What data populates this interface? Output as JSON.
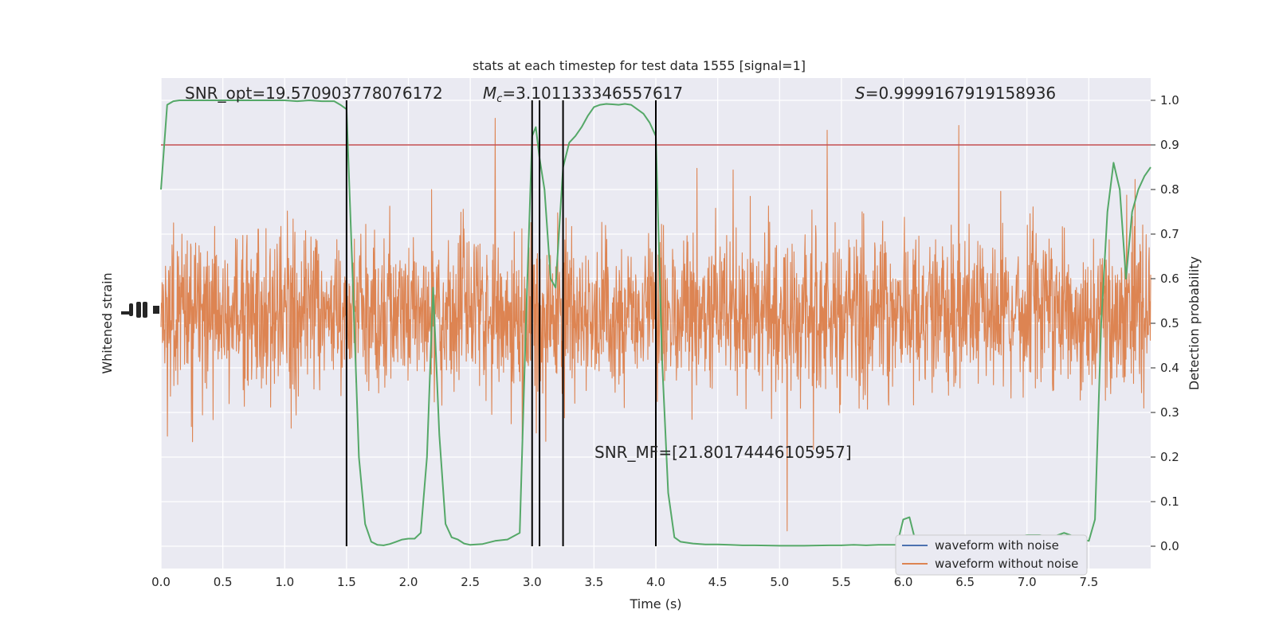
{
  "chart_data": {
    "type": "line",
    "title": "stats at each timestep for test data 1555 [signal=1]",
    "xlabel": "Time (s)",
    "ylabel_left": "Whitened strain",
    "ylabel_right": "Detection probability",
    "xlim": [
      0,
      8
    ],
    "ylim_right": [
      -0.05,
      1.05
    ],
    "x_ticks": [
      "0.0",
      "0.5",
      "1.0",
      "1.5",
      "2.0",
      "2.5",
      "3.0",
      "3.5",
      "4.0",
      "4.5",
      "5.0",
      "5.5",
      "6.0",
      "6.5",
      "7.0",
      "7.5"
    ],
    "y_ticks_right": [
      "0.0",
      "0.1",
      "0.2",
      "0.3",
      "0.4",
      "0.5",
      "0.6",
      "0.7",
      "0.8",
      "0.9",
      "1.0"
    ],
    "grid": true,
    "threshold": 0.9,
    "vlines": [
      1.5,
      3.0,
      3.06,
      3.25,
      4.0
    ],
    "annotations": {
      "snr_opt": "SNR_opt=19.570903778076172",
      "mc_symbol": "M",
      "mc_sub": "c",
      "mc_value": "=3.101133346557617",
      "s_symbol": "S",
      "s_value": "=0.9999167919158936",
      "snr_mf": "SNR_MF=[21.80174446105957]"
    },
    "legend": {
      "position": "lower-right",
      "entries": [
        {
          "name": "waveform with noise",
          "color": "#4c72b0"
        },
        {
          "name": "waveform without noise",
          "color": "#dd8452"
        }
      ]
    },
    "series": [
      {
        "name": "detection probability",
        "color": "#55a868",
        "x": [
          0.0,
          0.05,
          0.1,
          0.15,
          0.2,
          0.3,
          0.4,
          0.5,
          0.6,
          0.7,
          0.8,
          0.9,
          1.0,
          1.1,
          1.2,
          1.3,
          1.4,
          1.45,
          1.5,
          1.55,
          1.6,
          1.65,
          1.7,
          1.75,
          1.8,
          1.85,
          1.9,
          1.95,
          2.0,
          2.05,
          2.1,
          2.15,
          2.2,
          2.25,
          2.3,
          2.35,
          2.4,
          2.45,
          2.5,
          2.6,
          2.7,
          2.8,
          2.9,
          2.95,
          3.0,
          3.03,
          3.06,
          3.1,
          3.15,
          3.19,
          3.25,
          3.3,
          3.35,
          3.4,
          3.45,
          3.5,
          3.55,
          3.6,
          3.65,
          3.7,
          3.75,
          3.8,
          3.85,
          3.9,
          3.95,
          4.0,
          4.05,
          4.1,
          4.15,
          4.2,
          4.25,
          4.3,
          4.4,
          4.5,
          4.6,
          4.7,
          4.8,
          5.0,
          5.2,
          5.4,
          5.5,
          5.6,
          5.7,
          5.8,
          5.85,
          5.9,
          5.95,
          6.0,
          6.05,
          6.1,
          6.2,
          6.3,
          6.4,
          6.5,
          6.6,
          6.7,
          6.8,
          6.9,
          7.0,
          7.1,
          7.2,
          7.25,
          7.3,
          7.35,
          7.4,
          7.45,
          7.5,
          7.55,
          7.6,
          7.65,
          7.7,
          7.75,
          7.8,
          7.85,
          7.9,
          7.95,
          8.0
        ],
        "y": [
          0.8,
          0.99,
          0.998,
          1.0,
          1.0,
          1.0,
          1.0,
          1.0,
          1.0,
          1.0,
          1.0,
          1.0,
          1.0,
          0.998,
          1.0,
          0.998,
          0.998,
          0.99,
          0.98,
          0.6,
          0.2,
          0.05,
          0.01,
          0.003,
          0.002,
          0.005,
          0.01,
          0.015,
          0.017,
          0.017,
          0.03,
          0.2,
          0.58,
          0.25,
          0.05,
          0.02,
          0.015,
          0.006,
          0.003,
          0.005,
          0.012,
          0.015,
          0.03,
          0.5,
          0.92,
          0.94,
          0.87,
          0.8,
          0.6,
          0.58,
          0.85,
          0.905,
          0.92,
          0.94,
          0.965,
          0.985,
          0.99,
          0.992,
          0.991,
          0.99,
          0.992,
          0.99,
          0.98,
          0.97,
          0.95,
          0.92,
          0.42,
          0.12,
          0.02,
          0.01,
          0.008,
          0.006,
          0.004,
          0.004,
          0.003,
          0.002,
          0.002,
          0.001,
          0.001,
          0.002,
          0.002,
          0.003,
          0.002,
          0.003,
          0.003,
          0.003,
          0.003,
          0.06,
          0.065,
          0.01,
          0.003,
          0.002,
          0.002,
          0.003,
          0.005,
          0.01,
          0.015,
          0.02,
          0.025,
          0.025,
          0.02,
          0.025,
          0.03,
          0.025,
          0.02,
          0.015,
          0.012,
          0.06,
          0.5,
          0.75,
          0.86,
          0.8,
          0.6,
          0.75,
          0.8,
          0.83,
          0.85
        ]
      }
    ]
  }
}
